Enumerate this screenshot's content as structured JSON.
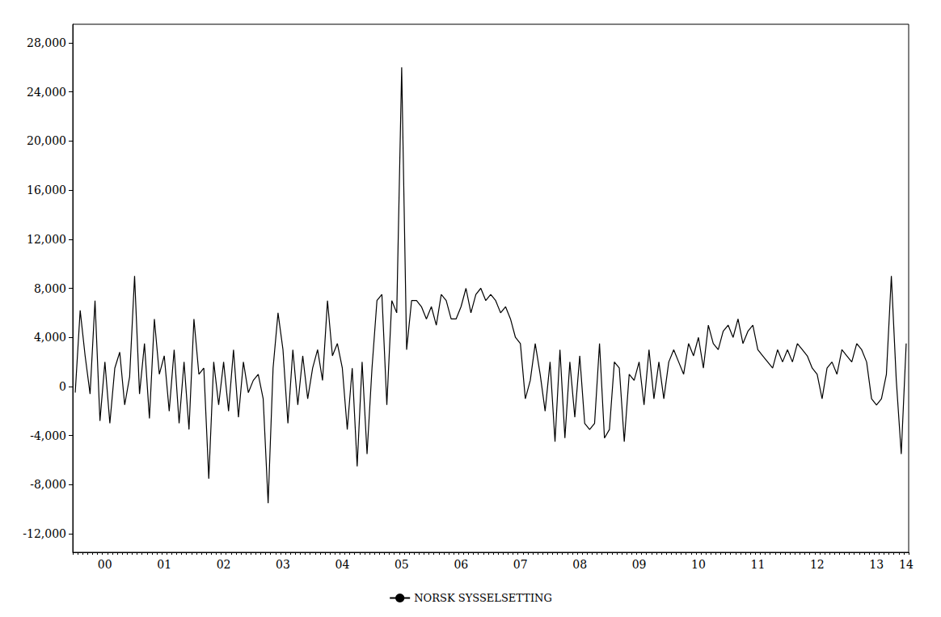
{
  "chart_data": {
    "type": "line",
    "categories": [
      null,
      null,
      null,
      null,
      null,
      null,
      "00",
      null,
      null,
      null,
      null,
      null,
      null,
      null,
      null,
      null,
      null,
      null,
      "01",
      null,
      null,
      null,
      null,
      null,
      null,
      null,
      null,
      null,
      null,
      null,
      "02",
      null,
      null,
      null,
      null,
      null,
      null,
      null,
      null,
      null,
      null,
      null,
      "03",
      null,
      null,
      null,
      null,
      null,
      null,
      null,
      null,
      null,
      null,
      null,
      "04",
      null,
      null,
      null,
      null,
      null,
      null,
      null,
      null,
      null,
      null,
      null,
      "05",
      null,
      null,
      null,
      null,
      null,
      null,
      null,
      null,
      null,
      null,
      null,
      "06",
      null,
      null,
      null,
      null,
      null,
      null,
      null,
      null,
      null,
      null,
      null,
      "07",
      null,
      null,
      null,
      null,
      null,
      null,
      null,
      null,
      null,
      null,
      null,
      "08",
      null,
      null,
      null,
      null,
      null,
      null,
      null,
      null,
      null,
      null,
      null,
      "09",
      null,
      null,
      null,
      null,
      null,
      null,
      null,
      null,
      null,
      null,
      null,
      "10",
      null,
      null,
      null,
      null,
      null,
      null,
      null,
      null,
      null,
      null,
      null,
      "11",
      null,
      null,
      null,
      null,
      null,
      null,
      null,
      null,
      null,
      null,
      null,
      "12",
      null,
      null,
      null,
      null,
      null,
      null,
      null,
      null,
      null,
      null,
      null,
      "13",
      null,
      null,
      null,
      null,
      null,
      "14"
    ],
    "series": [
      {
        "name": "NORSK SYSSELSETTING",
        "color": "#000000",
        "values": [
          -500,
          6200,
          2500,
          -600,
          7000,
          -2800,
          2000,
          -3000,
          1500,
          2800,
          -1500,
          800,
          9000,
          -600,
          3500,
          -2600,
          5500,
          1000,
          2500,
          -2000,
          3000,
          -3000,
          2000,
          -3500,
          5500,
          1000,
          1500,
          -7500,
          2000,
          -1500,
          2000,
          -2000,
          3000,
          -2500,
          2000,
          -500,
          500,
          1000,
          -1000,
          -9500,
          1500,
          6000,
          3000,
          -3000,
          3000,
          -1500,
          2500,
          -1000,
          1500,
          3000,
          500,
          7000,
          2500,
          3500,
          1500,
          -3500,
          1500,
          -6500,
          2000,
          -5500,
          1500,
          7000,
          7500,
          -1500,
          7000,
          6000,
          26000,
          3000,
          7000,
          7000,
          6500,
          5500,
          6500,
          5000,
          7500,
          7000,
          5500,
          5500,
          6500,
          8000,
          6000,
          7500,
          8000,
          7000,
          7500,
          7000,
          6000,
          6500,
          5500,
          4000,
          3500,
          -1000,
          500,
          3500,
          1000,
          -2000,
          2000,
          -4500,
          3000,
          -4200,
          2000,
          -2500,
          2500,
          -3000,
          -3500,
          -3000,
          3500,
          -4200,
          -3500,
          2000,
          1500,
          -4500,
          1000,
          500,
          2000,
          -1500,
          3000,
          -1000,
          2000,
          -1000,
          2000,
          3000,
          2000,
          1000,
          3500,
          2500,
          4000,
          1500,
          5000,
          3500,
          3000,
          4500,
          5000,
          4000,
          5500,
          3500,
          4500,
          5000,
          3000,
          2500,
          2000,
          1500,
          3000,
          2000,
          3000,
          2000,
          3500,
          3000,
          2500,
          1500,
          1000,
          -1000,
          1500,
          2000,
          1000,
          3000,
          2500,
          2000,
          3500,
          3000,
          2000,
          -1000,
          -1500,
          -1000,
          1000,
          9000,
          500,
          -5500,
          3500
        ]
      }
    ],
    "ylim": [
      -13500,
      29500
    ],
    "yticks": [
      {
        "value": -12000,
        "label": "-12,000"
      },
      {
        "value": -8000,
        "label": "-8,000"
      },
      {
        "value": -4000,
        "label": "-4,000"
      },
      0,
      {
        "value": 4000,
        "label": "4,000"
      },
      {
        "value": 8000,
        "label": "8,000"
      },
      {
        "value": 12000,
        "label": "12,000"
      },
      {
        "value": 16000,
        "label": "16,000"
      },
      {
        "value": 20000,
        "label": "20,000"
      },
      {
        "value": 24000,
        "label": "24,000"
      },
      {
        "value": 28000,
        "label": "28,000"
      }
    ],
    "grid": false,
    "legend": "bottom"
  }
}
